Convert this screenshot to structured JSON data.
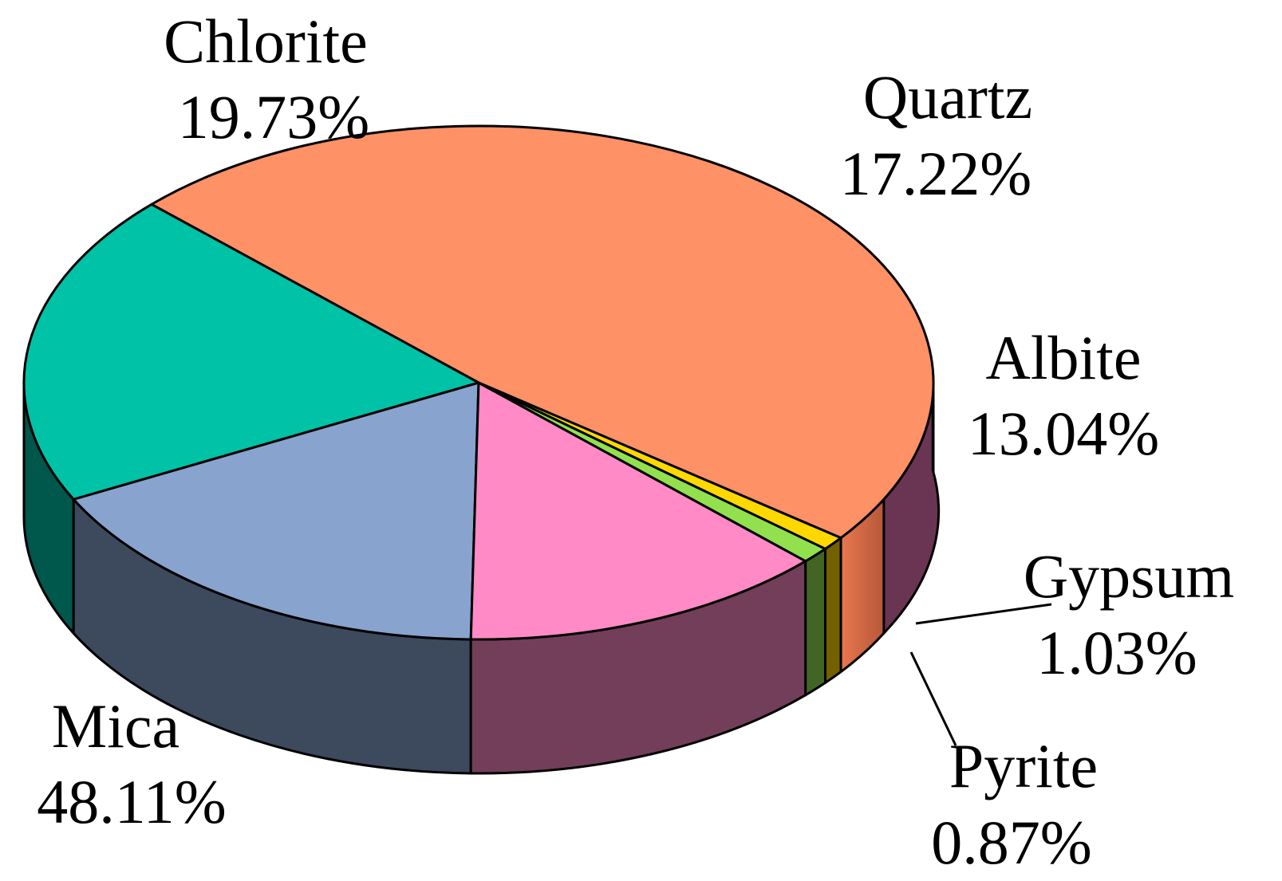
{
  "chart_data": {
    "type": "pie",
    "style": "3d",
    "slices": [
      {
        "label": "Mica",
        "value": 48.11,
        "text": "48.11%",
        "color": "#FF9166"
      },
      {
        "label": "Chlorite",
        "value": 19.73,
        "text": "19.73%",
        "color": "#00C2A6"
      },
      {
        "label": "Quartz",
        "value": 17.22,
        "text": "17.22%",
        "color": "#88A3CE"
      },
      {
        "label": "Albite",
        "value": 13.04,
        "text": "13.04%",
        "color": "#FF8AC6"
      },
      {
        "label": "Gypsum",
        "value": 1.03,
        "text": "1.03%",
        "color": "#93E04F"
      },
      {
        "label": "Pyrite",
        "value": 0.87,
        "text": "0.87%",
        "color": "#FFD800"
      }
    ],
    "legend": "none"
  }
}
